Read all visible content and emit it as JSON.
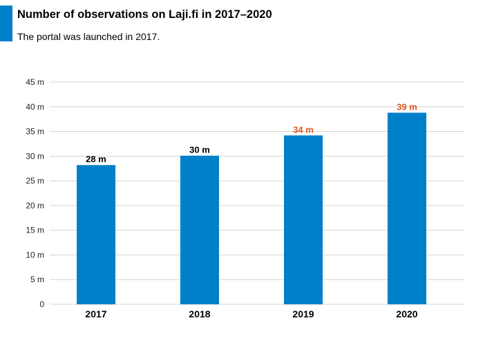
{
  "header": {
    "accent_color": "#0080c8"
  },
  "chart_data": {
    "type": "bar",
    "title": "Number of observations on Laji.fi in 2017–2020",
    "subtitle": "The portal was launched in 2017.",
    "xlabel": "",
    "ylabel": "",
    "categories": [
      "2017",
      "2018",
      "2019",
      "2020"
    ],
    "values": [
      28.2,
      30.1,
      34.2,
      38.8
    ],
    "data_labels": [
      "28 m",
      "30 m",
      "34 m",
      "39 m"
    ],
    "data_label_colors": [
      "#000000",
      "#000000",
      "#e0561b",
      "#e0561b"
    ],
    "bar_color": "#0080c8",
    "grid_color": "#d4d4d4",
    "grid": true,
    "ylim": [
      0,
      45
    ],
    "y_ticks": [
      0,
      5,
      10,
      15,
      20,
      25,
      30,
      35,
      40,
      45
    ],
    "y_tick_labels": [
      "0",
      "5 m",
      "10 m",
      "15 m",
      "20 m",
      "25 m",
      "30 m",
      "35 m",
      "40 m",
      "45 m"
    ]
  }
}
